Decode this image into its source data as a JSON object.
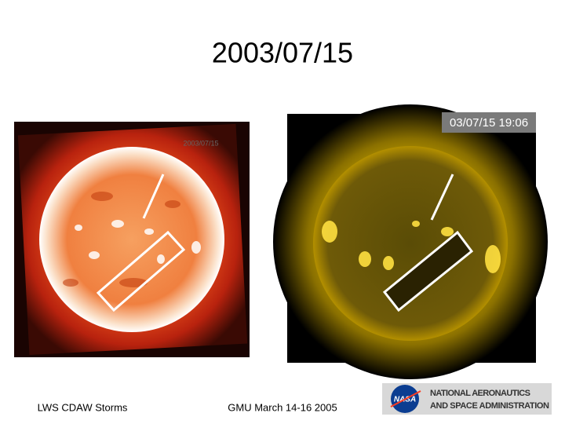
{
  "slide": {
    "title": "2003/07/15"
  },
  "images": [
    {
      "timestamp": "2003/07/15"
    },
    {
      "timestamp": "03/07/15 19:06"
    }
  ],
  "footer": {
    "left": "LWS CDAW Storms",
    "center": "GMU March 14-16 2005"
  },
  "logo": {
    "mark": "NASA",
    "line1": "NATIONAL AERONAUTICS",
    "line2": "AND SPACE ADMINISTRATION"
  }
}
